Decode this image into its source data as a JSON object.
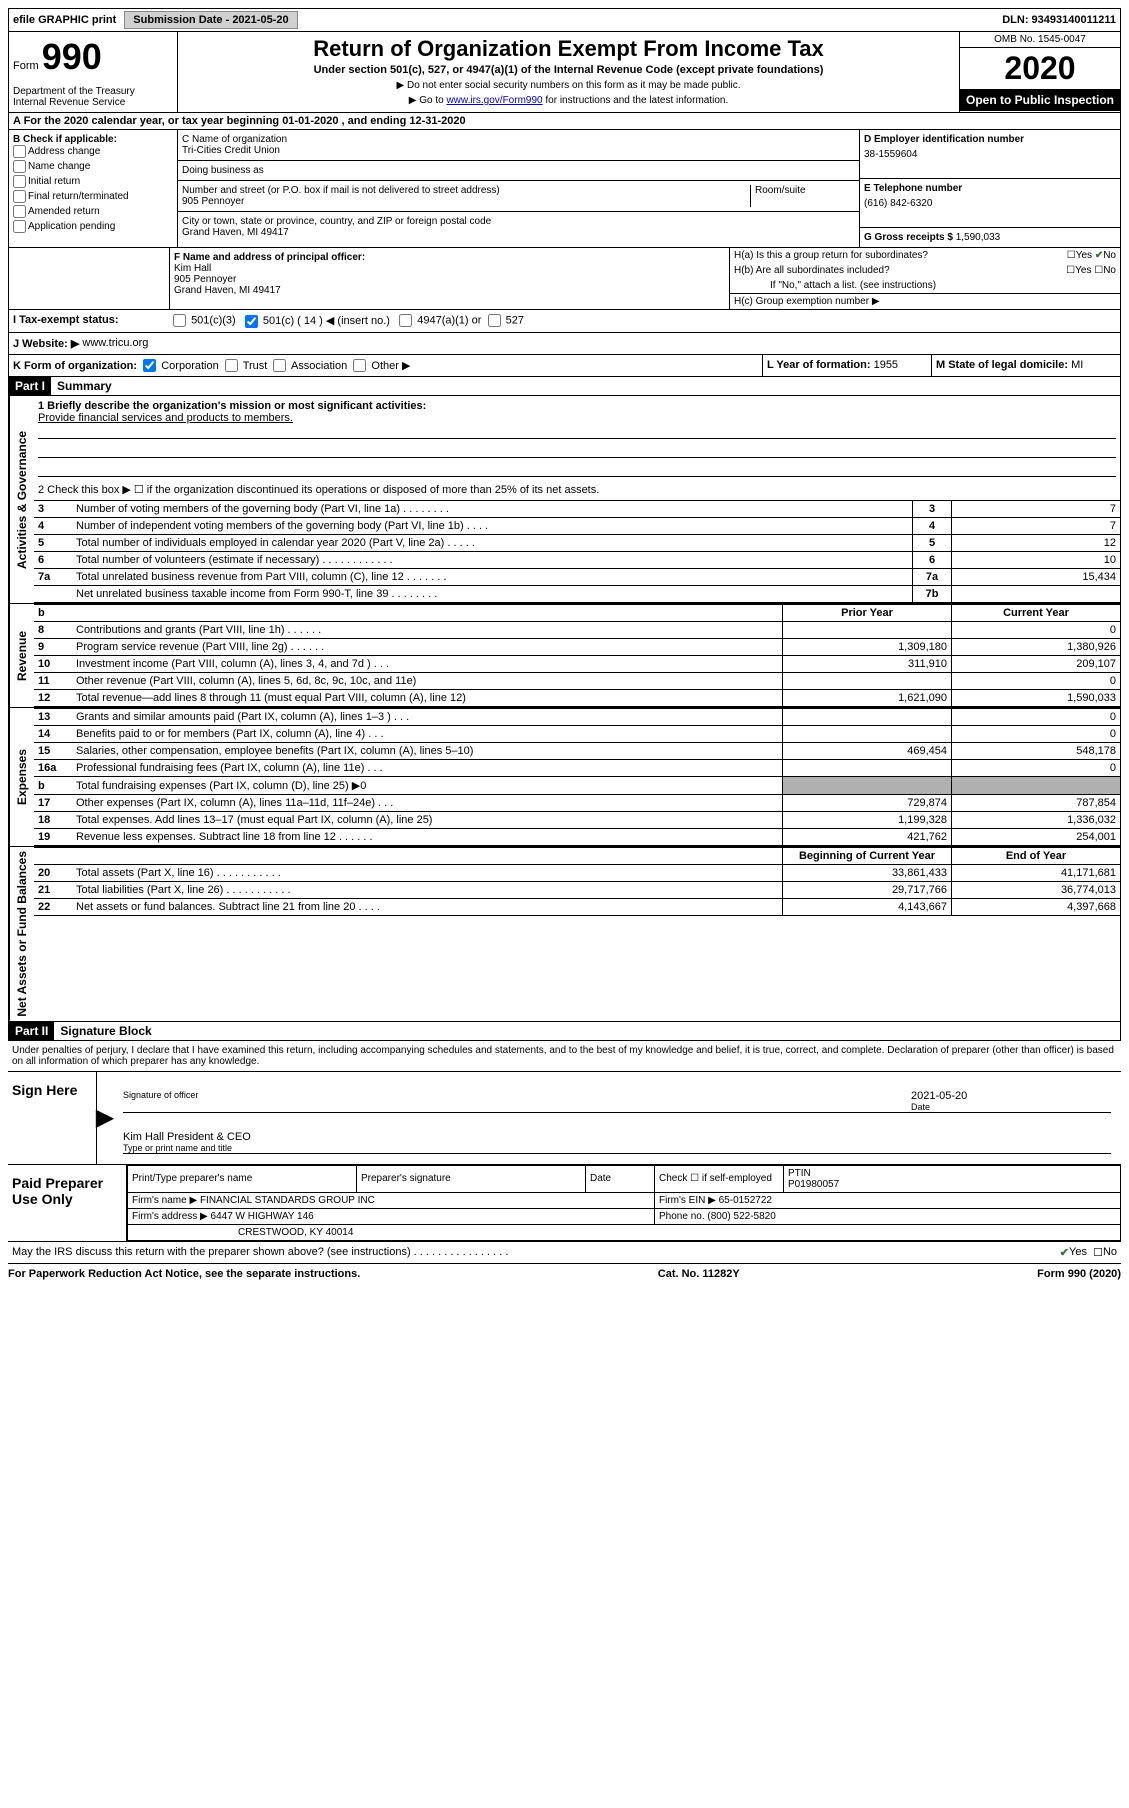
{
  "topbar": {
    "efile": "efile GRAPHIC print",
    "submission_label": "Submission Date - 2021-05-20",
    "dln": "DLN: 93493140011211"
  },
  "header": {
    "form_label": "Form",
    "form_number": "990",
    "dept": "Department of the Treasury\nInternal Revenue Service",
    "title": "Return of Organization Exempt From Income Tax",
    "subtitle": "Under section 501(c), 527, or 4947(a)(1) of the Internal Revenue Code (except private foundations)",
    "instr1": "▶ Do not enter social security numbers on this form as it may be made public.",
    "instr2_prefix": "▶ Go to ",
    "instr2_link": "www.irs.gov/Form990",
    "instr2_suffix": " for instructions and the latest information.",
    "omb": "OMB No. 1545-0047",
    "year": "2020",
    "inspection": "Open to Public Inspection"
  },
  "line_a": "A  For the 2020 calendar year, or tax year beginning 01-01-2020   , and ending 12-31-2020",
  "section_b": {
    "b_label": "B Check if applicable:",
    "checks": [
      "Address change",
      "Name change",
      "Initial return",
      "Final return/terminated",
      "Amended return",
      "Application pending"
    ],
    "c_label": "C Name of organization",
    "org_name": "Tri-Cities Credit Union",
    "dba": "Doing business as",
    "street_label": "Number and street (or P.O. box if mail is not delivered to street address)",
    "room_label": "Room/suite",
    "street": "905 Pennoyer",
    "city_label": "City or town, state or province, country, and ZIP or foreign postal code",
    "city": "Grand Haven, MI  49417",
    "d_label": "D Employer identification number",
    "ein": "38-1559604",
    "e_label": "E Telephone number",
    "phone": "(616) 842-6320",
    "g_label": "G Gross receipts $",
    "gross": "1,590,033",
    "f_label": "F  Name and address of principal officer:",
    "officer": "Kim Hall\n905 Pennoyer\nGrand Haven, MI  49417",
    "ha": "H(a)  Is this a group return for subordinates?",
    "hb": "H(b)  Are all subordinates included?",
    "hb_note": "If \"No,\" attach a list. (see instructions)",
    "hc": "H(c)  Group exemption number ▶",
    "yes": "Yes",
    "no": "No"
  },
  "line_i": {
    "label": "I   Tax-exempt status:",
    "opt1": "501(c)(3)",
    "opt2": "501(c) ( 14 ) ◀ (insert no.)",
    "opt3": "4947(a)(1) or",
    "opt4": "527"
  },
  "line_j": {
    "label": "J   Website: ▶",
    "value": "www.tricu.org"
  },
  "line_k": {
    "label": "K Form of organization:",
    "opts": [
      "Corporation",
      "Trust",
      "Association",
      "Other ▶"
    ],
    "l_label": "L Year of formation:",
    "l_val": "1955",
    "m_label": "M State of legal domicile:",
    "m_val": "MI"
  },
  "part1": {
    "title": "Part I",
    "subtitle": "Summary",
    "q1": "1   Briefly describe the organization's mission or most significant activities:",
    "q1_ans": "Provide financial services and products to members.",
    "q2": "2   Check this box ▶ ☐  if the organization discontinued its operations or disposed of more than 25% of its net assets.",
    "vside_act": "Activities & Governance",
    "vside_rev": "Revenue",
    "vside_exp": "Expenses",
    "vside_net": "Net Assets or Fund Balances",
    "rows_act": [
      {
        "n": "3",
        "desc": "Number of voting members of the governing body (Part VI, line 1a)   .    .    .    .    .    .    .    .",
        "box": "3",
        "val": "7"
      },
      {
        "n": "4",
        "desc": "Number of independent voting members of the governing body (Part VI, line 1b)    .    .    .    .",
        "box": "4",
        "val": "7"
      },
      {
        "n": "5",
        "desc": "Total number of individuals employed in calendar year 2020 (Part V, line 2a)    .    .    .    .    .",
        "box": "5",
        "val": "12"
      },
      {
        "n": "6",
        "desc": "Total number of volunteers (estimate if necessary)    .    .    .    .    .    .    .    .    .    .    .    .",
        "box": "6",
        "val": "10"
      },
      {
        "n": "7a",
        "desc": "Total unrelated business revenue from Part VIII, column (C), line 12    .    .    .    .    .    .    .",
        "box": "7a",
        "val": "15,434"
      },
      {
        "n": "",
        "desc": "Net unrelated business taxable income from Form 990-T, line 39    .    .    .    .    .    .    .    .",
        "box": "7b",
        "val": ""
      }
    ],
    "hdr_b": "b",
    "hdr_prior": "Prior Year",
    "hdr_current": "Current Year",
    "rows_rev": [
      {
        "n": "8",
        "desc": "Contributions and grants (Part VIII, line 1h)   .    .    .    .    .    .",
        "p": "",
        "c": "0"
      },
      {
        "n": "9",
        "desc": "Program service revenue (Part VIII, line 2g)    .    .    .    .    .    .",
        "p": "1,309,180",
        "c": "1,380,926"
      },
      {
        "n": "10",
        "desc": "Investment income (Part VIII, column (A), lines 3, 4, and 7d )    .    .    .",
        "p": "311,910",
        "c": "209,107"
      },
      {
        "n": "11",
        "desc": "Other revenue (Part VIII, column (A), lines 5, 6d, 8c, 9c, 10c, and 11e)",
        "p": "",
        "c": "0"
      },
      {
        "n": "12",
        "desc": "Total revenue—add lines 8 through 11 (must equal Part VIII, column (A), line 12)",
        "p": "1,621,090",
        "c": "1,590,033"
      }
    ],
    "rows_exp": [
      {
        "n": "13",
        "desc": "Grants and similar amounts paid (Part IX, column (A), lines 1–3 )   .    .    .",
        "p": "",
        "c": "0"
      },
      {
        "n": "14",
        "desc": "Benefits paid to or for members (Part IX, column (A), line 4)   .    .    .",
        "p": "",
        "c": "0"
      },
      {
        "n": "15",
        "desc": "Salaries, other compensation, employee benefits (Part IX, column (A), lines 5–10)",
        "p": "469,454",
        "c": "548,178"
      },
      {
        "n": "16a",
        "desc": "Professional fundraising fees (Part IX, column (A), line 11e)   .    .    .",
        "p": "",
        "c": "0"
      },
      {
        "n": "b",
        "desc": "Total fundraising expenses (Part IX, column (D), line 25) ▶0",
        "p": "shaded",
        "c": "shaded"
      },
      {
        "n": "17",
        "desc": "Other expenses (Part IX, column (A), lines 11a–11d, 11f–24e)   .    .    .",
        "p": "729,874",
        "c": "787,854"
      },
      {
        "n": "18",
        "desc": "Total expenses. Add lines 13–17 (must equal Part IX, column (A), line 25)",
        "p": "1,199,328",
        "c": "1,336,032"
      },
      {
        "n": "19",
        "desc": "Revenue less expenses. Subtract line 18 from line 12   .    .    .    .    .    .",
        "p": "421,762",
        "c": "254,001"
      }
    ],
    "hdr_begin": "Beginning of Current Year",
    "hdr_end": "End of Year",
    "rows_net": [
      {
        "n": "20",
        "desc": "Total assets (Part X, line 16)   .    .    .    .    .    .    .    .    .    .    .",
        "p": "33,861,433",
        "c": "41,171,681"
      },
      {
        "n": "21",
        "desc": "Total liabilities (Part X, line 26)   .    .    .    .    .    .    .    .    .    .    .",
        "p": "29,717,766",
        "c": "36,774,013"
      },
      {
        "n": "22",
        "desc": "Net assets or fund balances. Subtract line 21 from line 20    .    .    .    .",
        "p": "4,143,667",
        "c": "4,397,668"
      }
    ]
  },
  "part2": {
    "title": "Part II",
    "subtitle": "Signature Block",
    "declaration": "Under penalties of perjury, I declare that I have examined this return, including accompanying schedules and statements, and to the best of my knowledge and belief, it is true, correct, and complete. Declaration of preparer (other than officer) is based on all information of which preparer has any knowledge.",
    "sign_here": "Sign Here",
    "sig_officer": "Signature of officer",
    "date_label": "Date",
    "date_val": "2021-05-20",
    "officer_name": "Kim Hall  President & CEO",
    "type_name": "Type or print name and title",
    "paid": "Paid Preparer Use Only",
    "prep_name": "Print/Type preparer's name",
    "prep_sig": "Preparer's signature",
    "prep_date": "Date",
    "check_se": "Check ☐ if self-employed",
    "ptin_label": "PTIN",
    "ptin": "P01980057",
    "firm_name_label": "Firm's name      ▶",
    "firm_name": "FINANCIAL STANDARDS GROUP INC",
    "firm_ein_label": "Firm's EIN ▶",
    "firm_ein": "65-0152722",
    "firm_addr_label": "Firm's address ▶",
    "firm_addr1": "6447 W HIGHWAY 146",
    "firm_addr2": "CRESTWOOD, KY  40014",
    "phone_label": "Phone no.",
    "phone": "(800) 522-5820",
    "discuss": "May the IRS discuss this return with the preparer shown above? (see instructions)    .    .    .    .    .    .    .    .    .    .    .    .    .    .    .    .",
    "discuss_yes": "Yes",
    "discuss_no": "No"
  },
  "footer": {
    "left": "For Paperwork Reduction Act Notice, see the separate instructions.",
    "mid": "Cat. No. 11282Y",
    "right": "Form 990 (2020)"
  }
}
